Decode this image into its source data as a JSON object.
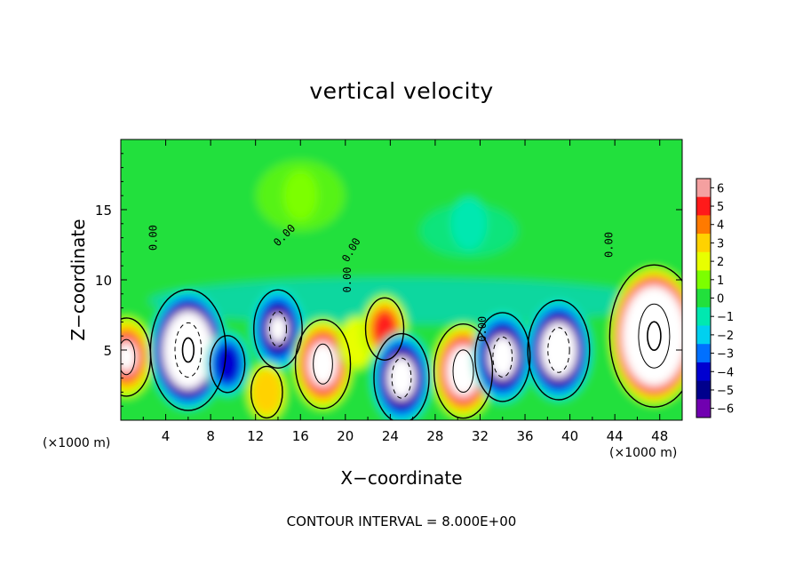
{
  "chart_data": {
    "type": "heatmap",
    "title": "vertical velocity",
    "xlabel": "X−coordinate",
    "ylabel": "Z−coordinate",
    "x_unit_label": "(×1000 m)",
    "xlim": [
      0,
      50
    ],
    "ylim": [
      0,
      20
    ],
    "x_ticks": [
      4,
      8,
      12,
      16,
      20,
      24,
      28,
      32,
      36,
      40,
      44,
      48
    ],
    "y_ticks": [
      5,
      10,
      15
    ],
    "colorbar": {
      "ticks": [
        6,
        5,
        4,
        3,
        2,
        1,
        0,
        -1,
        -2,
        -3,
        -4,
        -5,
        -6
      ],
      "tick_labels": [
        "6",
        "5",
        "4",
        "3",
        "2",
        "1",
        "0",
        "−1",
        "−2",
        "−3",
        "−4",
        "−5",
        "−6"
      ],
      "range": [
        -6,
        6
      ],
      "colors": [
        "#f4a0a0",
        "#ff1a1a",
        "#ff7a00",
        "#ffd200",
        "#e8ff00",
        "#7cff00",
        "#22e03c",
        "#00e8b0",
        "#00d0f0",
        "#0070ff",
        "#0000d0",
        "#00008c",
        "#7000b0"
      ]
    },
    "contour_labels": [
      "0.00",
      "0.00",
      "0.00",
      "0.00",
      "0.00",
      "0.00"
    ],
    "contour_interval_text": "CONTOUR INTERVAL = 8.000E+00",
    "features": [
      {
        "x": 0.5,
        "z": 4.5,
        "w": 8
      },
      {
        "x": 6,
        "z": 5,
        "w": -16
      },
      {
        "x": 9.5,
        "z": 4,
        "w": -4
      },
      {
        "x": 14,
        "z": 6.5,
        "w": -8
      },
      {
        "x": 13,
        "z": 2,
        "w": 3
      },
      {
        "x": 18,
        "z": 4,
        "w": 10
      },
      {
        "x": 21,
        "z": 5.5,
        "w": 2
      },
      {
        "x": 23.5,
        "z": 6.5,
        "w": 5
      },
      {
        "x": 25,
        "z": 3,
        "w": -10
      },
      {
        "x": 30.5,
        "z": 3.5,
        "w": 11
      },
      {
        "x": 34,
        "z": 4.5,
        "w": -10
      },
      {
        "x": 39,
        "z": 5,
        "w": -12
      },
      {
        "x": 47.5,
        "z": 6,
        "w": 20
      },
      {
        "x": 31,
        "z": 14,
        "w": -1.5
      },
      {
        "x": 16,
        "z": 16,
        "w": 1
      }
    ]
  }
}
